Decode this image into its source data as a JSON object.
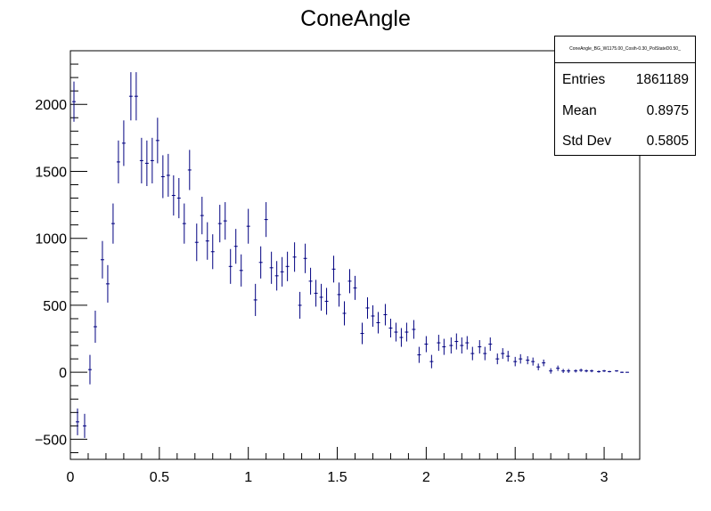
{
  "chart_data": {
    "type": "scatter",
    "title": "ConeAngle",
    "xlabel": "",
    "ylabel": "",
    "xlim": [
      0,
      3.2
    ],
    "ylim": [
      -650,
      2400
    ],
    "x_ticks": [
      0,
      0.5,
      1,
      1.5,
      2,
      2.5,
      3
    ],
    "x_tick_labels": [
      "0",
      "0.5",
      "1",
      "1.5",
      "2",
      "2.5",
      "3"
    ],
    "y_ticks": [
      -500,
      0,
      500,
      1000,
      1500,
      2000
    ],
    "y_tick_labels": [
      "−500",
      "0",
      "500",
      "1000",
      "1500",
      "2000"
    ],
    "series_color": "#000080",
    "bin_half_width": 0.01,
    "points": [
      [
        0.02,
        2020,
        150
      ],
      [
        0.04,
        -370,
        100
      ],
      [
        0.08,
        -400,
        90
      ],
      [
        0.11,
        20,
        110
      ],
      [
        0.14,
        340,
        120
      ],
      [
        0.18,
        840,
        140
      ],
      [
        0.21,
        660,
        140
      ],
      [
        0.24,
        1110,
        150
      ],
      [
        0.27,
        1570,
        160
      ],
      [
        0.3,
        1710,
        170
      ],
      [
        0.34,
        2060,
        180
      ],
      [
        0.37,
        2060,
        180
      ],
      [
        0.4,
        1580,
        170
      ],
      [
        0.43,
        1560,
        170
      ],
      [
        0.46,
        1580,
        170
      ],
      [
        0.49,
        1730,
        170
      ],
      [
        0.52,
        1460,
        160
      ],
      [
        0.55,
        1470,
        160
      ],
      [
        0.58,
        1320,
        150
      ],
      [
        0.61,
        1300,
        150
      ],
      [
        0.64,
        1110,
        150
      ],
      [
        0.67,
        1510,
        150
      ],
      [
        0.71,
        970,
        140
      ],
      [
        0.74,
        1170,
        140
      ],
      [
        0.77,
        980,
        140
      ],
      [
        0.8,
        900,
        130
      ],
      [
        0.84,
        1110,
        140
      ],
      [
        0.87,
        1130,
        140
      ],
      [
        0.9,
        790,
        130
      ],
      [
        0.93,
        940,
        130
      ],
      [
        0.96,
        760,
        120
      ],
      [
        1.0,
        1090,
        130
      ],
      [
        1.04,
        540,
        120
      ],
      [
        1.07,
        820,
        120
      ],
      [
        1.1,
        1140,
        130
      ],
      [
        1.13,
        780,
        120
      ],
      [
        1.16,
        720,
        110
      ],
      [
        1.19,
        750,
        110
      ],
      [
        1.22,
        790,
        110
      ],
      [
        1.26,
        860,
        110
      ],
      [
        1.29,
        500,
        100
      ],
      [
        1.32,
        850,
        110
      ],
      [
        1.35,
        680,
        100
      ],
      [
        1.38,
        590,
        100
      ],
      [
        1.41,
        560,
        100
      ],
      [
        1.44,
        530,
        100
      ],
      [
        1.48,
        770,
        100
      ],
      [
        1.51,
        580,
        90
      ],
      [
        1.54,
        440,
        90
      ],
      [
        1.57,
        680,
        90
      ],
      [
        1.6,
        630,
        90
      ],
      [
        1.64,
        290,
        80
      ],
      [
        1.67,
        480,
        80
      ],
      [
        1.7,
        420,
        80
      ],
      [
        1.73,
        370,
        80
      ],
      [
        1.77,
        430,
        80
      ],
      [
        1.8,
        330,
        70
      ],
      [
        1.83,
        300,
        70
      ],
      [
        1.86,
        260,
        70
      ],
      [
        1.89,
        300,
        70
      ],
      [
        1.93,
        320,
        70
      ],
      [
        1.96,
        130,
        60
      ],
      [
        2.0,
        210,
        60
      ],
      [
        2.03,
        80,
        50
      ],
      [
        2.07,
        220,
        60
      ],
      [
        2.1,
        190,
        60
      ],
      [
        2.14,
        200,
        60
      ],
      [
        2.17,
        230,
        60
      ],
      [
        2.2,
        200,
        60
      ],
      [
        2.23,
        220,
        50
      ],
      [
        2.26,
        140,
        50
      ],
      [
        2.3,
        190,
        50
      ],
      [
        2.33,
        140,
        50
      ],
      [
        2.36,
        210,
        50
      ],
      [
        2.4,
        100,
        40
      ],
      [
        2.43,
        140,
        40
      ],
      [
        2.46,
        120,
        40
      ],
      [
        2.5,
        80,
        35
      ],
      [
        2.53,
        100,
        35
      ],
      [
        2.57,
        90,
        30
      ],
      [
        2.6,
        80,
        30
      ],
      [
        2.63,
        40,
        25
      ],
      [
        2.66,
        70,
        25
      ],
      [
        2.7,
        10,
        20
      ],
      [
        2.74,
        30,
        20
      ],
      [
        2.77,
        10,
        15
      ],
      [
        2.8,
        10,
        15
      ],
      [
        2.84,
        10,
        12
      ],
      [
        2.87,
        15,
        12
      ],
      [
        2.9,
        10,
        10
      ],
      [
        2.93,
        10,
        10
      ],
      [
        2.97,
        5,
        8
      ],
      [
        3.0,
        10,
        8
      ],
      [
        3.03,
        5,
        6
      ],
      [
        3.07,
        10,
        6
      ],
      [
        3.1,
        0,
        5
      ],
      [
        3.13,
        0,
        3
      ]
    ]
  },
  "stats": {
    "header": "ConeAngle_BG_W1175.00_Cosih-0.30_PolStateD0.50_",
    "rows": [
      {
        "key": "Entries",
        "value": "1861189"
      },
      {
        "key": "Mean",
        "value": "0.8975"
      },
      {
        "key": "Std Dev",
        "value": "0.5805"
      }
    ]
  }
}
